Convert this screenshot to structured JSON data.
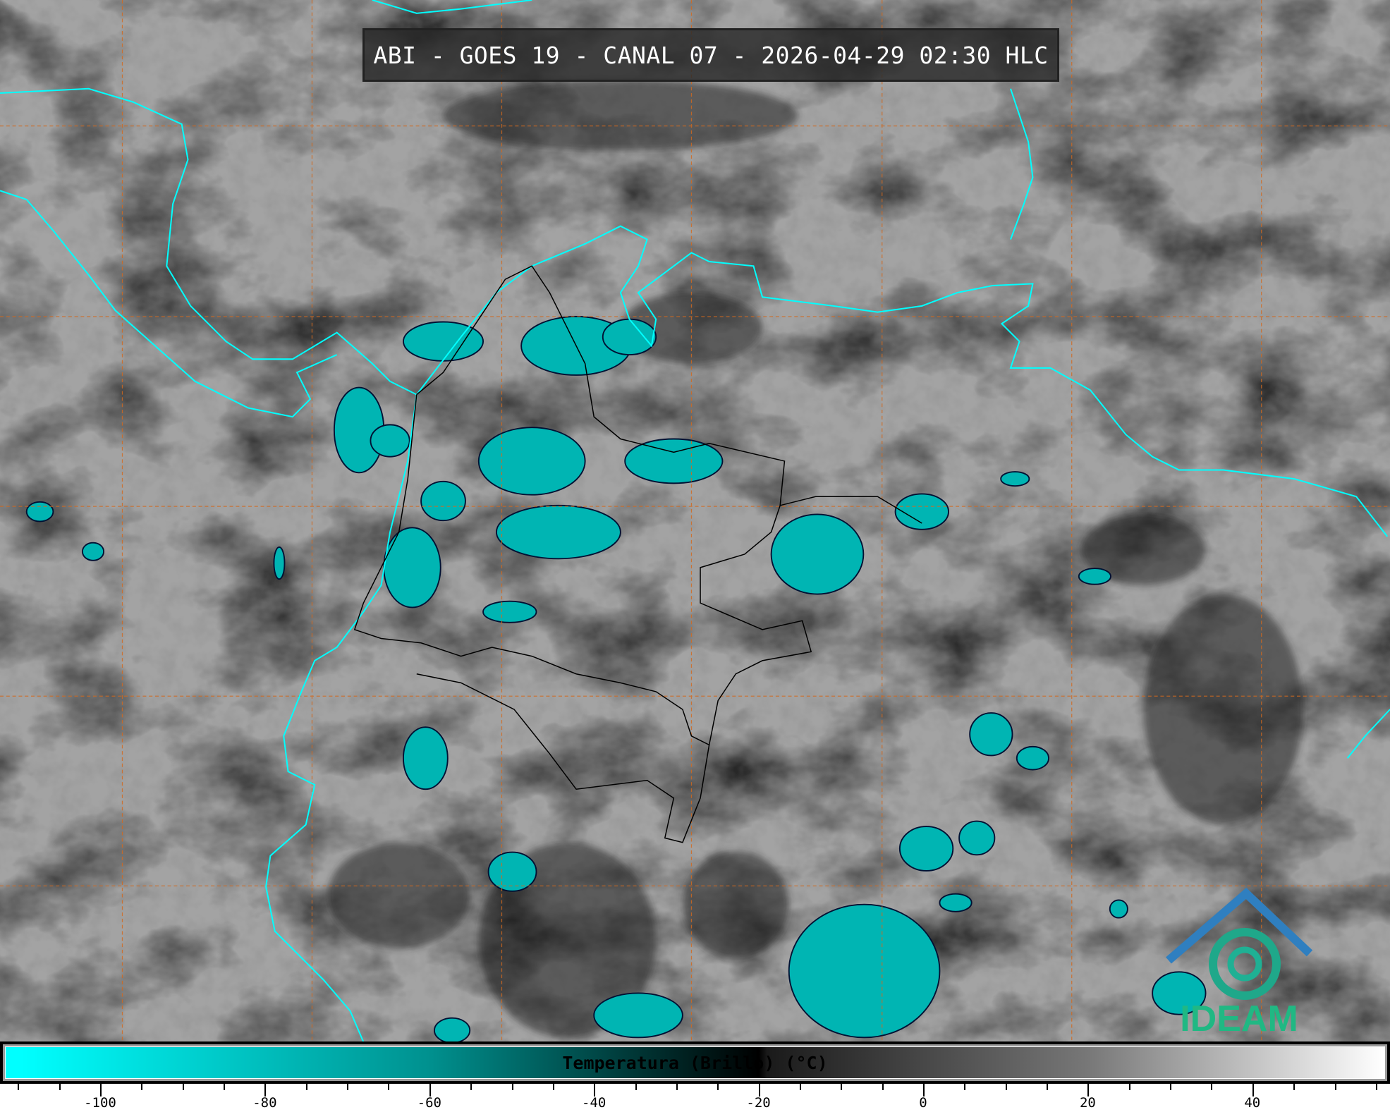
{
  "title": "ABI - GOES 19 - CANAL 07 - 2026-04-29 02:30 HLC",
  "colorbar": {
    "label": "Temperatura (Brillo) (°C)",
    "min": -110,
    "max": 57,
    "major_ticks": [
      "-100",
      "-80",
      "-60",
      "-40",
      "-20",
      "0",
      "20",
      "40"
    ],
    "major_values": [
      -100,
      -80,
      -60,
      -40,
      -20,
      0,
      20,
      40
    ],
    "minor_step": 5,
    "stops": [
      {
        "value": -110,
        "color": "#00ffff"
      },
      {
        "value": -60,
        "color": "#00908e"
      },
      {
        "value": -20,
        "color": "#000000"
      },
      {
        "value": -19,
        "color": "#1a1a1a"
      },
      {
        "value": 20,
        "color": "#777777"
      },
      {
        "value": 57,
        "color": "#ffffff"
      }
    ]
  },
  "logo": {
    "text": "IDEAM"
  },
  "colors": {
    "coastline": "#00ffff",
    "grid": "#d2691e",
    "borders": "#000000",
    "cold_cloud": "#00b5b3"
  }
}
